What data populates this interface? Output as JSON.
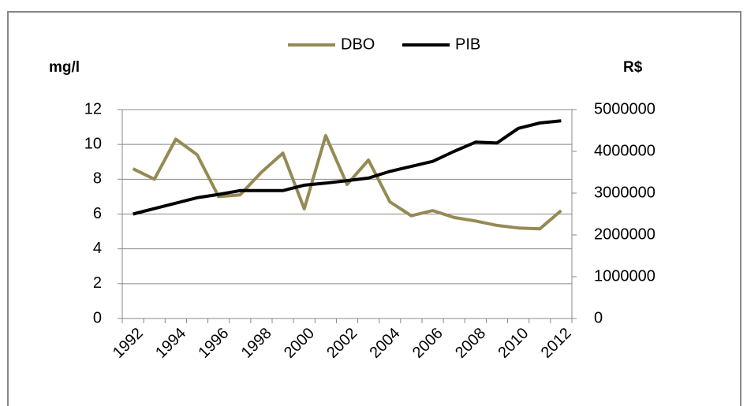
{
  "chart_data": {
    "type": "line",
    "ylabel": "mg/l",
    "y2label": "R$",
    "categories": [
      "1992",
      null,
      "1994",
      null,
      "1996",
      null,
      "1998",
      null,
      "2000",
      null,
      "2002",
      null,
      "2004",
      null,
      "2006",
      null,
      "2008",
      null,
      "2010",
      null,
      "2012"
    ],
    "series": [
      {
        "name": "DBO",
        "color": "#948a54",
        "values": [
          8.6,
          8.0,
          10.3,
          9.4,
          7.0,
          7.1,
          8.4,
          9.5,
          6.3,
          10.5,
          7.7,
          9.1,
          6.7,
          5.9,
          6.2,
          5.8,
          5.6,
          5.35,
          5.2,
          5.15,
          6.2
        ]
      },
      {
        "name": "PIB",
        "color": "#000000",
        "axis": "y2",
        "values": [
          2500000,
          2630000,
          2760000,
          2890000,
          2970000,
          3060000,
          3060000,
          3060000,
          3190000,
          3240000,
          3300000,
          3360000,
          3520000,
          3640000,
          3760000,
          4000000,
          4220000,
          4200000,
          4550000,
          4680000,
          4730000
        ]
      }
    ],
    "ylim": [
      0,
      12
    ],
    "yticks": [
      0,
      2,
      4,
      6,
      8,
      10,
      12
    ],
    "y2lim": [
      0,
      5000000
    ],
    "y2ticks": [
      0,
      1000000,
      2000000,
      3000000,
      4000000,
      5000000
    ],
    "grid": true,
    "legend": "top"
  }
}
